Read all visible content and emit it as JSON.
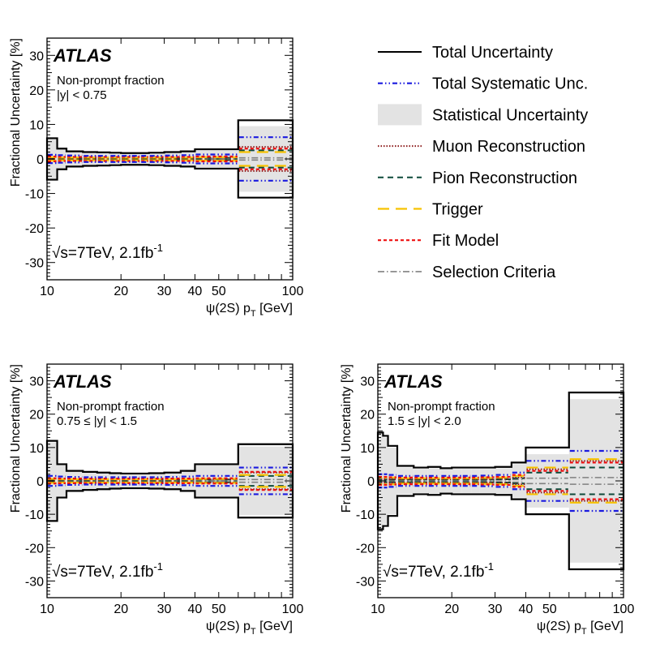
{
  "chart_data": [
    {
      "type": "line",
      "title": "ATLAS",
      "experiment": "ATLAS",
      "quantity": "Non-prompt fraction",
      "rapidity_range": "|y| < 0.75",
      "energy_label": "√s=7TeV, 2.1fb",
      "energy_sup": "-1",
      "xlabel": "ψ(2S) p",
      "xlabel_sub": "T",
      "xlabel_unit": " [GeV]",
      "ylabel": "Fractional Uncertainty [%]",
      "xscale": "log",
      "xlim": [
        10,
        100
      ],
      "ylim": [
        -35,
        35
      ],
      "xticklabels": [
        {
          "v": 10,
          "t": "10"
        },
        {
          "v": 20,
          "t": "20"
        },
        {
          "v": 30,
          "t": "30"
        },
        {
          "v": 40,
          "t": "40"
        },
        {
          "v": 50,
          "t": "50"
        },
        {
          "v": 100,
          "t": "100"
        }
      ],
      "yticks": [
        -30,
        -20,
        -10,
        0,
        10,
        20,
        30
      ],
      "bin_edges": [
        10,
        11,
        12,
        14,
        16,
        18,
        20,
        22,
        24,
        26,
        30,
        35,
        40,
        60,
        100
      ],
      "series": [
        {
          "name": "Total Uncertainty",
          "key": "total",
          "values": [
            6.0,
            3.0,
            2.2,
            2.0,
            1.9,
            1.8,
            1.7,
            1.7,
            1.7,
            1.8,
            2.0,
            2.2,
            2.8,
            11.2
          ]
        },
        {
          "name": "Total Systematic Unc.",
          "key": "syst",
          "values": [
            1.2,
            1.1,
            1.0,
            0.9,
            0.9,
            0.9,
            0.9,
            0.9,
            0.9,
            0.9,
            1.0,
            1.1,
            1.3,
            6.3
          ]
        },
        {
          "name": "Statistical Uncertainty",
          "key": "stat",
          "values": [
            5.8,
            2.8,
            2.0,
            1.8,
            1.7,
            1.6,
            1.5,
            1.5,
            1.5,
            1.6,
            1.8,
            2.0,
            2.5,
            9.5
          ]
        },
        {
          "name": "Muon Reconstruction",
          "key": "muon",
          "values": [
            0.3,
            0.3,
            0.3,
            0.3,
            0.3,
            0.3,
            0.3,
            0.3,
            0.3,
            0.3,
            0.3,
            0.3,
            0.4,
            3.5
          ]
        },
        {
          "name": "Pion Reconstruction",
          "key": "pion",
          "values": [
            0.2,
            0.2,
            0.2,
            0.2,
            0.2,
            0.2,
            0.2,
            0.2,
            0.2,
            0.2,
            0.2,
            0.2,
            0.3,
            2.5
          ]
        },
        {
          "name": "Trigger",
          "key": "trigger",
          "values": [
            0.5,
            0.4,
            0.4,
            0.4,
            0.4,
            0.4,
            0.4,
            0.4,
            0.4,
            0.4,
            0.4,
            0.4,
            0.5,
            2.0
          ]
        },
        {
          "name": "Fit Model",
          "key": "fit",
          "values": [
            0.7,
            0.6,
            0.6,
            0.6,
            0.6,
            0.6,
            0.6,
            0.6,
            0.6,
            0.6,
            0.6,
            0.6,
            0.7,
            3.0
          ]
        },
        {
          "name": "Selection Criteria",
          "key": "sel",
          "values": [
            0.1,
            0.1,
            0.1,
            0.1,
            0.1,
            0.1,
            0.1,
            0.1,
            0.1,
            0.1,
            0.1,
            0.1,
            0.1,
            0.3
          ]
        }
      ]
    },
    {
      "type": "line",
      "title": "ATLAS",
      "experiment": "ATLAS",
      "quantity": "Non-prompt fraction",
      "rapidity_range": "0.75 ≤ |y| < 1.5",
      "energy_label": "√s=7TeV, 2.1fb",
      "energy_sup": "-1",
      "xlabel": "ψ(2S) p",
      "xlabel_sub": "T",
      "xlabel_unit": " [GeV]",
      "ylabel": "Fractional Uncertainty [%]",
      "xscale": "log",
      "xlim": [
        10,
        100
      ],
      "ylim": [
        -35,
        35
      ],
      "xticklabels": [
        {
          "v": 10,
          "t": "10"
        },
        {
          "v": 20,
          "t": "20"
        },
        {
          "v": 30,
          "t": "30"
        },
        {
          "v": 40,
          "t": "40"
        },
        {
          "v": 50,
          "t": "50"
        },
        {
          "v": 100,
          "t": "100"
        }
      ],
      "yticks": [
        -30,
        -20,
        -10,
        0,
        10,
        20,
        30
      ],
      "bin_edges": [
        10,
        11,
        12,
        14,
        16,
        18,
        20,
        22,
        24,
        26,
        30,
        35,
        40,
        60,
        100
      ],
      "series": [
        {
          "name": "Total Uncertainty",
          "key": "total",
          "values": [
            12.0,
            5.0,
            3.0,
            2.7,
            2.5,
            2.3,
            2.2,
            2.2,
            2.2,
            2.3,
            2.5,
            3.0,
            5.0,
            11.0
          ]
        },
        {
          "name": "Total Systematic Unc.",
          "key": "syst",
          "values": [
            1.5,
            1.3,
            1.2,
            1.1,
            1.1,
            1.1,
            1.1,
            1.1,
            1.1,
            1.1,
            1.2,
            1.3,
            1.5,
            4.0
          ]
        },
        {
          "name": "Statistical Uncertainty",
          "key": "stat",
          "values": [
            11.5,
            4.8,
            2.8,
            2.5,
            2.3,
            2.1,
            2.0,
            2.0,
            2.0,
            2.1,
            2.3,
            2.8,
            4.8,
            10.3
          ]
        },
        {
          "name": "Muon Reconstruction",
          "key": "muon",
          "values": [
            0.4,
            0.4,
            0.4,
            0.4,
            0.4,
            0.4,
            0.4,
            0.4,
            0.4,
            0.4,
            0.4,
            0.4,
            0.5,
            2.5
          ]
        },
        {
          "name": "Pion Reconstruction",
          "key": "pion",
          "values": [
            0.3,
            0.3,
            0.3,
            0.3,
            0.3,
            0.3,
            0.3,
            0.3,
            0.3,
            0.3,
            0.3,
            0.3,
            0.4,
            1.5
          ]
        },
        {
          "name": "Trigger",
          "key": "trigger",
          "values": [
            0.6,
            0.5,
            0.5,
            0.5,
            0.5,
            0.5,
            0.5,
            0.5,
            0.5,
            0.5,
            0.5,
            0.5,
            0.6,
            1.8
          ]
        },
        {
          "name": "Fit Model",
          "key": "fit",
          "values": [
            0.8,
            0.7,
            0.7,
            0.7,
            0.7,
            0.7,
            0.7,
            0.7,
            0.7,
            0.7,
            0.7,
            0.7,
            0.8,
            2.7
          ]
        },
        {
          "name": "Selection Criteria",
          "key": "sel",
          "values": [
            0.1,
            0.1,
            0.1,
            0.1,
            0.1,
            0.1,
            0.1,
            0.1,
            0.1,
            0.1,
            0.1,
            0.1,
            0.2,
            0.4
          ]
        }
      ]
    },
    {
      "type": "line",
      "title": "ATLAS",
      "experiment": "ATLAS",
      "quantity": "Non-prompt fraction",
      "rapidity_range": "1.5 ≤ |y| < 2.0",
      "energy_label": "√s=7TeV, 2.1fb",
      "energy_sup": "-1",
      "xlabel": "ψ(2S) p",
      "xlabel_sub": "T",
      "xlabel_unit": " [GeV]",
      "ylabel": "Fractional Uncertainty [%]",
      "xscale": "log",
      "xlim": [
        10,
        100
      ],
      "ylim": [
        -35,
        35
      ],
      "xticklabels": [
        {
          "v": 10,
          "t": "10"
        },
        {
          "v": 20,
          "t": "20"
        },
        {
          "v": 30,
          "t": "30"
        },
        {
          "v": 40,
          "t": "40"
        },
        {
          "v": 50,
          "t": "50"
        },
        {
          "v": 100,
          "t": "100"
        }
      ],
      "yticks": [
        -30,
        -20,
        -10,
        0,
        10,
        20,
        30
      ],
      "bin_edges": [
        10,
        10.5,
        11,
        12,
        14,
        16,
        18,
        20,
        22,
        24,
        26,
        30,
        35,
        40,
        60,
        100
      ],
      "series": [
        {
          "name": "Total Uncertainty",
          "key": "total",
          "values": [
            14.5,
            13.5,
            10.5,
            4.5,
            4.0,
            4.2,
            3.8,
            4.0,
            4.0,
            4.0,
            4.0,
            4.2,
            5.5,
            10.0,
            26.5
          ]
        },
        {
          "name": "Total Systematic Unc.",
          "key": "syst",
          "values": [
            2.0,
            2.0,
            1.8,
            1.5,
            1.5,
            1.5,
            1.5,
            1.5,
            1.5,
            1.5,
            1.6,
            1.8,
            2.5,
            6.0,
            9.0
          ]
        },
        {
          "name": "Statistical Uncertainty",
          "key": "stat",
          "values": [
            14.0,
            13.0,
            10.0,
            4.0,
            3.6,
            3.8,
            3.4,
            3.6,
            3.6,
            3.6,
            3.6,
            3.8,
            5.0,
            8.0,
            24.5
          ]
        },
        {
          "name": "Muon Reconstruction",
          "key": "muon",
          "values": [
            0.5,
            0.5,
            0.5,
            0.5,
            0.5,
            0.5,
            0.5,
            0.5,
            0.5,
            0.5,
            0.5,
            0.6,
            1.0,
            3.5,
            6.0
          ]
        },
        {
          "name": "Pion Reconstruction",
          "key": "pion",
          "values": [
            0.4,
            0.4,
            0.4,
            0.4,
            0.4,
            0.4,
            0.4,
            0.4,
            0.4,
            0.4,
            0.4,
            0.5,
            0.8,
            2.5,
            4.0
          ]
        },
        {
          "name": "Trigger",
          "key": "trigger",
          "values": [
            1.0,
            1.0,
            1.0,
            0.8,
            0.8,
            0.8,
            0.8,
            0.8,
            0.8,
            0.8,
            0.9,
            1.0,
            1.5,
            4.0,
            6.5
          ]
        },
        {
          "name": "Fit Model",
          "key": "fit",
          "values": [
            1.2,
            1.2,
            1.1,
            1.0,
            1.0,
            1.0,
            1.0,
            1.0,
            1.0,
            1.0,
            1.1,
            1.2,
            1.8,
            3.0,
            5.5
          ]
        },
        {
          "name": "Selection Criteria",
          "key": "sel",
          "values": [
            0.2,
            0.2,
            0.2,
            0.2,
            0.2,
            0.2,
            0.2,
            0.2,
            0.2,
            0.2,
            0.2,
            0.3,
            0.4,
            0.8,
            1.0
          ]
        }
      ]
    }
  ],
  "legend": {
    "entries": [
      {
        "key": "total",
        "label": "Total Uncertainty"
      },
      {
        "key": "syst",
        "label": "Total Systematic Unc."
      },
      {
        "key": "stat",
        "label": "Statistical Uncertainty"
      },
      {
        "key": "muon",
        "label": "Muon Reconstruction"
      },
      {
        "key": "pion",
        "label": "Pion Reconstruction"
      },
      {
        "key": "trigger",
        "label": "Trigger"
      },
      {
        "key": "fit",
        "label": "Fit Model"
      },
      {
        "key": "sel",
        "label": "Selection Criteria"
      }
    ]
  },
  "colors": {
    "total": "#000000",
    "syst": "#1a1adf",
    "stat": "#e3e3e3",
    "muon": "#8b1a1a",
    "pion": "#0d4a3a",
    "trigger": "#f7c200",
    "fit": "#ee1111",
    "sel": "#808080"
  }
}
